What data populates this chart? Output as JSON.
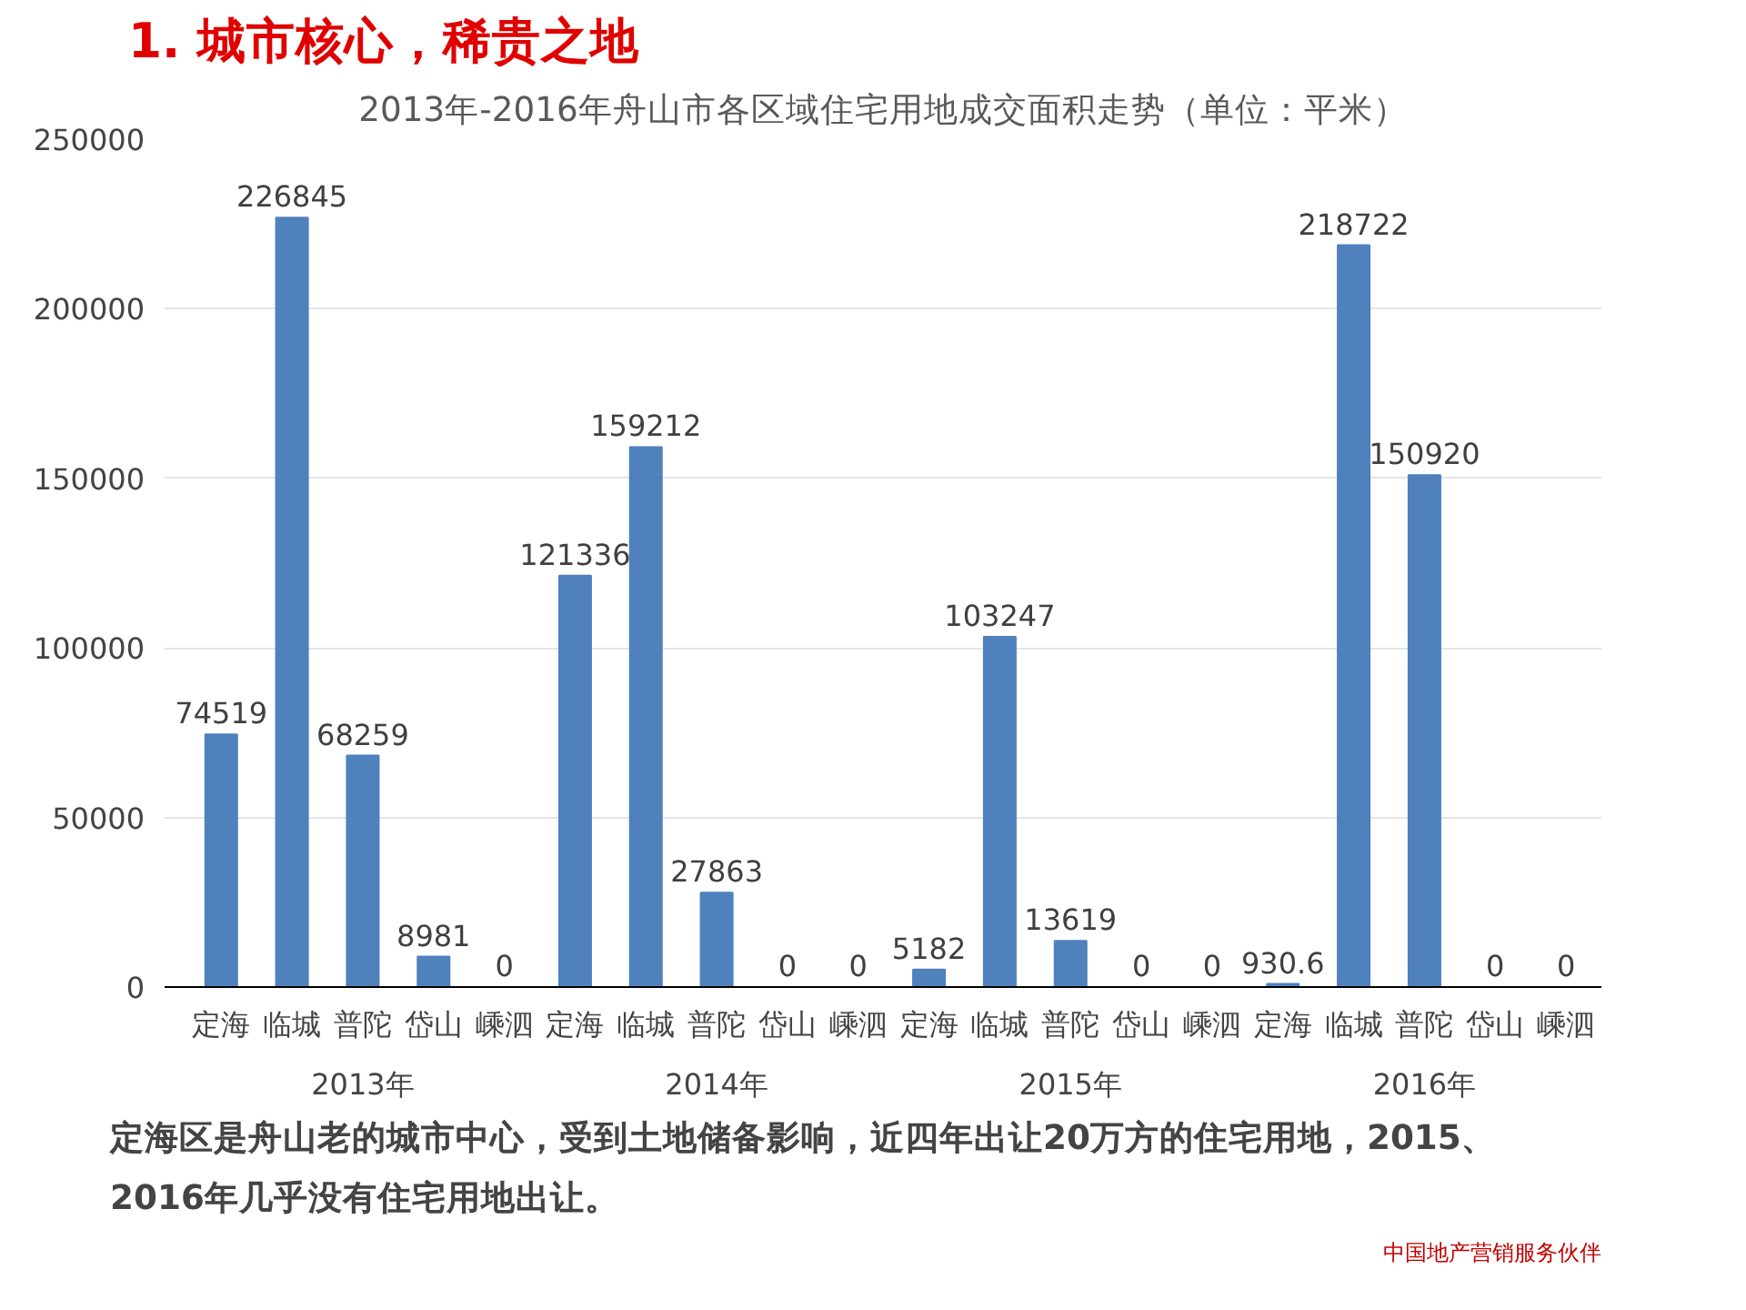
{
  "chart_data": {
    "type": "bar",
    "title": "1. 城市核心，稀贵之地",
    "subtitle": "2013年-2016年舟山市各区域住宅用地成交面积走势（单位：平米）",
    "categories": [
      "定海",
      "临城",
      "普陀",
      "岱山",
      "嵊泗",
      "定海",
      "临城",
      "普陀",
      "岱山",
      "嵊泗",
      "定海",
      "临城",
      "普陀",
      "岱山",
      "嵊泗",
      "定海",
      "临城",
      "普陀",
      "岱山",
      "嵊泗"
    ],
    "values": [
      74519,
      226845,
      68259,
      8981,
      0,
      121336,
      159212,
      27863,
      0,
      0,
      5182,
      103247,
      13619,
      0,
      0,
      930.6,
      218722,
      150920,
      0,
      0
    ],
    "color": "#4f81bd",
    "data_labels": true,
    "ylim": [
      0,
      250000
    ],
    "yticks": [
      0,
      50000,
      100000,
      150000,
      200000,
      250000
    ],
    "grid": "y",
    "annotations": [
      "2013年",
      "2014年",
      "2015年",
      "2016年",
      "定海区是舟山老的城市中心，受到土地储备影响，近四年出让20万方的住宅用地，2015、2016年几乎没有住宅用地出让。",
      "中国地产营销服务伙伴"
    ]
  }
}
